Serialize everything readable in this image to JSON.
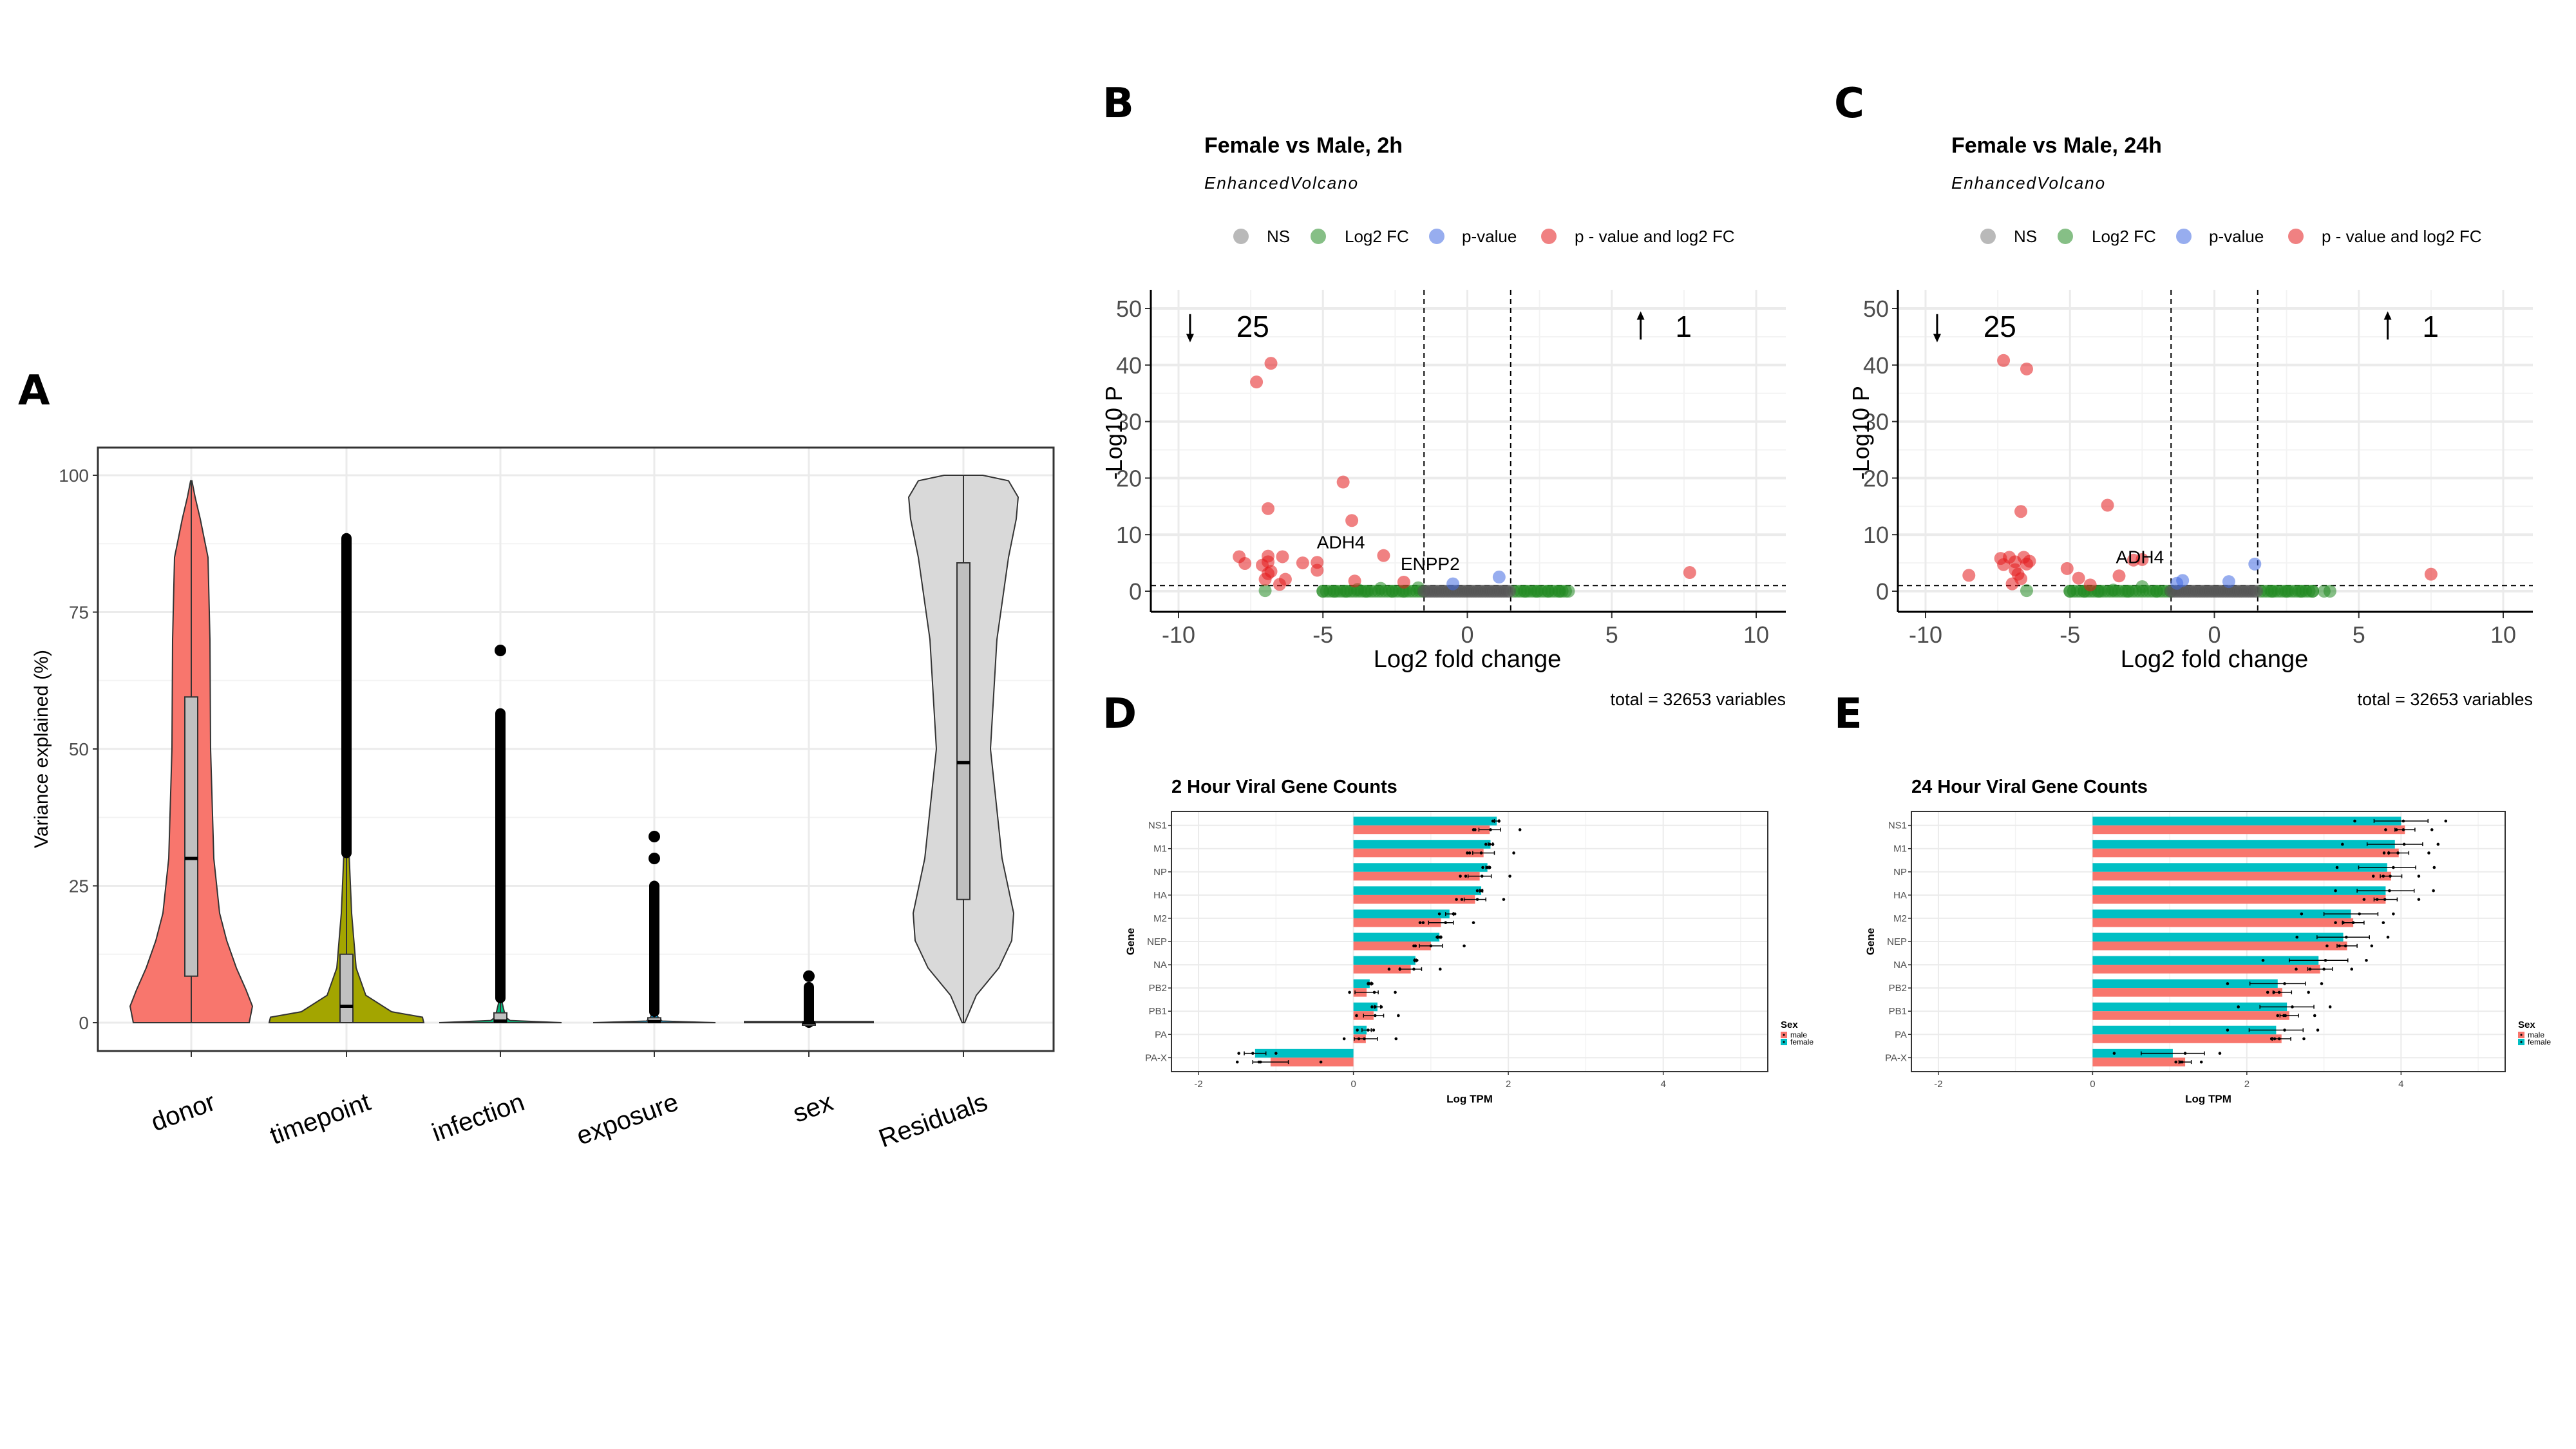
{
  "panel_labels": [
    "A",
    "B",
    "C",
    "D",
    "E"
  ],
  "chart_data": [
    {
      "id": "A",
      "type": "violin",
      "title": "",
      "xlabel": "",
      "ylabel": "Variance explained (%)",
      "ylim": [
        -8,
        105
      ],
      "yticks": [
        0,
        25,
        50,
        75,
        100
      ],
      "grid": true,
      "categories": [
        "donor",
        "timepoint",
        "infection",
        "exposure",
        "sex",
        "Residuals"
      ],
      "colors": [
        "#F8766D",
        "#A3A500",
        "#00BF7D",
        "#00B0F6",
        "#E76BF3",
        "#D9D9D9"
      ],
      "box": [
        {
          "q1": 8.5,
          "median": 30,
          "q3": 59.5,
          "whisker_low": 0,
          "whisker_high": 99
        },
        {
          "q1": 0,
          "median": 3,
          "q3": 12.5,
          "whisker_low": 0,
          "whisker_high": 31,
          "outliers_range": [
            31,
            88.5
          ]
        },
        {
          "q1": 0,
          "median": 0.3,
          "q3": 1.8,
          "whisker_low": 0,
          "whisker_high": 4.5,
          "outliers_range": [
            4.5,
            56.5
          ],
          "extra_outliers": [
            68
          ]
        },
        {
          "q1": 0,
          "median": 0.2,
          "q3": 0.9,
          "whisker_low": 0,
          "whisker_high": 2,
          "outliers_range": [
            2,
            25
          ],
          "extra_outliers": [
            30,
            34
          ]
        },
        {
          "q1": 0,
          "median": 0,
          "q3": 0,
          "whisker_low": 0,
          "whisker_high": 0,
          "outliers_range": [
            0,
            6.5
          ],
          "extra_outliers": [
            8.5
          ]
        },
        {
          "q1": 22.5,
          "median": 47.5,
          "q3": 84,
          "whisker_low": 0,
          "whisker_high": 100
        }
      ]
    },
    {
      "id": "B",
      "type": "scatter",
      "title": "Female vs Male, 2h",
      "subtitle": "EnhancedVolcano",
      "xlabel": "Log2 fold change",
      "ylabel": "-Log10 P",
      "xlim": [
        -11,
        11
      ],
      "ylim": [
        -2.5,
        52
      ],
      "xticks": [
        -10,
        -5,
        0,
        5,
        10
      ],
      "yticks": [
        0,
        10,
        20,
        30,
        40,
        50
      ],
      "fc_cutoff": 1.5,
      "p_cutoff_line": 1,
      "legend": [
        "NS",
        "Log2 FC",
        "p-value",
        "p - value and log2 FC"
      ],
      "legend_colors": [
        "#808080",
        "#228B22",
        "#4169E1",
        "#E41A1C"
      ],
      "down_count": "25",
      "up_count": "1",
      "caption": "total = 32653 variables",
      "labels": [
        {
          "text": "ADH4",
          "x": -5.1,
          "y": 5.5
        },
        {
          "text": "ENPP2",
          "x": -2.2,
          "y": 1.7
        }
      ],
      "points_sig": [
        [
          -7.3,
          37
        ],
        [
          -6.8,
          40.3
        ],
        [
          -6.9,
          14.6
        ],
        [
          -4.3,
          19.3
        ],
        [
          -4.0,
          12.5
        ],
        [
          -7.9,
          6.1
        ],
        [
          -7.7,
          4.9
        ],
        [
          -6.9,
          6.2
        ],
        [
          -7.1,
          4.6
        ],
        [
          -6.9,
          5.2
        ],
        [
          -6.8,
          3.5
        ],
        [
          -6.9,
          3.1
        ],
        [
          -7.0,
          2.1
        ],
        [
          -6.4,
          6.1
        ],
        [
          -6.3,
          2.1
        ],
        [
          -6.5,
          1.2
        ],
        [
          -5.7,
          5.0
        ],
        [
          -5.2,
          5.1
        ],
        [
          -5.2,
          3.7
        ],
        [
          -2.9,
          6.3
        ],
        [
          -3.9,
          1.8
        ],
        [
          -2.2,
          1.6
        ],
        [
          7.7,
          3.3
        ]
      ],
      "points_p": [
        [
          -0.5,
          1.3
        ],
        [
          1.1,
          2.5
        ]
      ],
      "points_fc": [
        [
          -7.0,
          0.1
        ],
        [
          -5.0,
          0
        ],
        [
          -4.6,
          0
        ],
        [
          -4.2,
          0
        ],
        [
          -3.8,
          0.3
        ],
        [
          -3.5,
          0
        ],
        [
          -3.0,
          0.5
        ],
        [
          -2.6,
          0
        ],
        [
          -2.2,
          0
        ],
        [
          -1.7,
          0.6
        ],
        [
          2.0,
          0
        ],
        [
          2.4,
          0
        ],
        [
          2.8,
          0
        ],
        [
          3.2,
          0
        ],
        [
          3.5,
          0
        ]
      ],
      "ns_range": [
        -1.5,
        1.5
      ]
    },
    {
      "id": "C",
      "type": "scatter",
      "title": "Female vs Male, 24h",
      "subtitle": "EnhancedVolcano",
      "xlabel": "Log2 fold change",
      "ylabel": "-Log10 P",
      "xlim": [
        -11,
        11
      ],
      "ylim": [
        -2.5,
        52
      ],
      "xticks": [
        -10,
        -5,
        0,
        5,
        10
      ],
      "yticks": [
        0,
        10,
        20,
        30,
        40,
        50
      ],
      "fc_cutoff": 1.5,
      "p_cutoff_line": 1,
      "legend": [
        "NS",
        "Log2 FC",
        "p-value",
        "p - value and log2 FC"
      ],
      "legend_colors": [
        "#808080",
        "#228B22",
        "#4169E1",
        "#E41A1C"
      ],
      "down_count": "25",
      "up_count": "1",
      "caption": "total = 32653 variables",
      "labels": [
        {
          "text": "ADH4",
          "x": -3.3,
          "y": 2.9
        }
      ],
      "points_sig": [
        [
          -7.3,
          40.8
        ],
        [
          -6.5,
          39.3
        ],
        [
          -6.7,
          14.1
        ],
        [
          -3.7,
          15.2
        ],
        [
          -7.4,
          5.8
        ],
        [
          -7.1,
          6.0
        ],
        [
          -7.3,
          4.7
        ],
        [
          -6.9,
          5.2
        ],
        [
          -6.9,
          3.8
        ],
        [
          -6.8,
          3.0
        ],
        [
          -6.7,
          2.2
        ],
        [
          -7.0,
          1.3
        ],
        [
          -6.6,
          6.0
        ],
        [
          -6.4,
          5.3
        ],
        [
          -6.5,
          4.8
        ],
        [
          -8.5,
          2.8
        ],
        [
          -5.1,
          4.0
        ],
        [
          -4.7,
          2.3
        ],
        [
          -4.3,
          1.1
        ],
        [
          -3.3,
          2.7
        ],
        [
          -2.8,
          5.5
        ],
        [
          -2.5,
          5.6
        ],
        [
          7.5,
          3.0
        ]
      ],
      "points_p": [
        [
          -1.3,
          1.4
        ],
        [
          -1.1,
          1.9
        ],
        [
          0.5,
          1.7
        ],
        [
          1.4,
          4.8
        ]
      ],
      "points_fc": [
        [
          -6.5,
          0.1
        ],
        [
          -5.0,
          0
        ],
        [
          -4.5,
          0
        ],
        [
          -4.0,
          0
        ],
        [
          -3.5,
          0.2
        ],
        [
          -3.0,
          0
        ],
        [
          -2.5,
          0.8
        ],
        [
          -2.0,
          0
        ],
        [
          2.0,
          0
        ],
        [
          2.5,
          0
        ],
        [
          3.0,
          0
        ],
        [
          3.4,
          0
        ],
        [
          3.8,
          0
        ],
        [
          4.0,
          0
        ]
      ],
      "ns_range": [
        -1.5,
        1.5
      ]
    },
    {
      "id": "D",
      "type": "bar",
      "orientation": "horizontal",
      "title": "2 Hour Viral Gene Counts",
      "xlabel": "Log TPM",
      "ylabel": "Gene",
      "xlim": [
        -2.35,
        5.35
      ],
      "xticks": [
        -2,
        0,
        2,
        4
      ],
      "grid": true,
      "legend_title": "Sex",
      "legend_placement": "right",
      "categories": [
        "NS1",
        "M1",
        "NP",
        "HA",
        "M2",
        "NEP",
        "NA",
        "PB2",
        "PB1",
        "PA",
        "PA-X"
      ],
      "series": [
        {
          "name": "male",
          "color": "#F8766D",
          "values": [
            1.76,
            1.68,
            1.63,
            1.57,
            1.13,
            1.0,
            0.74,
            0.17,
            0.26,
            0.16,
            -1.07
          ],
          "err": [
            0.14,
            0.14,
            0.15,
            0.14,
            0.16,
            0.15,
            0.14,
            0.15,
            0.13,
            0.15,
            0.23
          ],
          "points": [
            [
              1.55,
              1.57,
              1.77,
              2.15
            ],
            [
              1.47,
              1.5,
              1.65,
              2.07
            ],
            [
              1.38,
              1.45,
              1.66,
              2.02
            ],
            [
              1.33,
              1.4,
              1.6,
              1.94
            ],
            [
              0.86,
              0.9,
              1.19,
              1.55
            ],
            [
              0.78,
              0.8,
              1.0,
              1.43
            ],
            [
              0.46,
              0.6,
              0.78,
              1.12
            ],
            [
              -0.05,
              0.27,
              0.54
            ],
            [
              0.04,
              0.28,
              0.58
            ],
            [
              -0.12,
              0.07,
              0.14,
              0.55
            ],
            [
              -1.5,
              -1.22,
              -1.2,
              -0.42
            ]
          ]
        },
        {
          "name": "female",
          "color": "#00BFC4",
          "values": [
            1.85,
            1.77,
            1.73,
            1.65,
            1.24,
            1.11,
            0.8,
            0.21,
            0.31,
            0.17,
            -1.27
          ],
          "err": [
            0.03,
            0.03,
            0.02,
            0.02,
            0.05,
            0.02,
            0.01,
            0.02,
            0.04,
            0.06,
            0.14
          ],
          "points": [
            [
              1.8,
              1.88
            ],
            [
              1.71,
              1.76,
              1.8
            ],
            [
              1.67,
              1.73,
              1.76
            ],
            [
              1.6,
              1.65,
              1.66
            ],
            [
              1.11,
              1.29,
              1.31
            ],
            [
              1.08,
              1.11,
              1.13
            ],
            [
              0.79,
              0.81,
              0.82
            ],
            [
              0.19,
              0.21,
              0.24
            ],
            [
              0.24,
              0.28,
              0.36
            ],
            [
              0.05,
              0.19,
              0.26
            ],
            [
              -1.48,
              -1.3,
              -1.0
            ]
          ]
        }
      ]
    },
    {
      "id": "E",
      "type": "bar",
      "orientation": "horizontal",
      "title": "24 Hour Viral Gene Counts",
      "xlabel": "Log TPM",
      "ylabel": "Gene",
      "xlim": [
        -2.35,
        5.35
      ],
      "xticks": [
        -2,
        0,
        2,
        4
      ],
      "grid": true,
      "legend_title": "Sex",
      "legend_placement": "right",
      "categories": [
        "NS1",
        "M1",
        "NP",
        "HA",
        "M2",
        "NEP",
        "NA",
        "PB2",
        "PB1",
        "PA",
        "PA-X"
      ],
      "series": [
        {
          "name": "male",
          "color": "#F8766D",
          "values": [
            4.05,
            3.97,
            3.87,
            3.8,
            3.38,
            3.3,
            2.95,
            2.46,
            2.55,
            2.45,
            1.2
          ],
          "err": [
            0.13,
            0.13,
            0.14,
            0.15,
            0.14,
            0.13,
            0.16,
            0.12,
            0.12,
            0.12,
            0.08
          ],
          "points": [
            [
              3.8,
              3.94,
              4.03,
              4.4
            ],
            [
              3.78,
              3.84,
              3.96,
              4.36
            ],
            [
              3.64,
              3.77,
              3.86,
              4.23
            ],
            [
              3.52,
              3.69,
              3.79,
              4.23
            ],
            [
              3.15,
              3.25,
              3.38,
              3.77
            ],
            [
              3.04,
              3.2,
              3.28,
              3.62
            ],
            [
              2.64,
              2.82,
              3.0,
              3.36
            ],
            [
              2.27,
              2.35,
              2.42,
              2.8
            ],
            [
              2.4,
              2.48,
              2.5,
              2.88
            ],
            [
              2.32,
              2.36,
              2.42,
              2.74
            ],
            [
              1.08,
              1.14,
              1.16,
              1.41
            ]
          ]
        },
        {
          "name": "female",
          "color": "#00BFC4",
          "values": [
            4.0,
            3.92,
            3.82,
            3.8,
            3.35,
            3.25,
            2.93,
            2.4,
            2.52,
            2.38,
            1.04
          ],
          "err": [
            0.35,
            0.36,
            0.37,
            0.37,
            0.35,
            0.34,
            0.38,
            0.36,
            0.35,
            0.35,
            0.41
          ],
          "points": [
            [
              3.4,
              4.03,
              4.58
            ],
            [
              3.24,
              4.04,
              4.48
            ],
            [
              3.17,
              3.9,
              4.43
            ],
            [
              3.15,
              3.85,
              4.42
            ],
            [
              2.71,
              3.46,
              3.9
            ],
            [
              2.65,
              3.29,
              3.83
            ],
            [
              2.21,
              3.02,
              3.55
            ],
            [
              1.75,
              2.49,
              2.97
            ],
            [
              1.89,
              2.59,
              3.08
            ],
            [
              1.75,
              2.49,
              2.92
            ],
            [
              0.28,
              1.2,
              1.65
            ]
          ]
        }
      ]
    }
  ]
}
